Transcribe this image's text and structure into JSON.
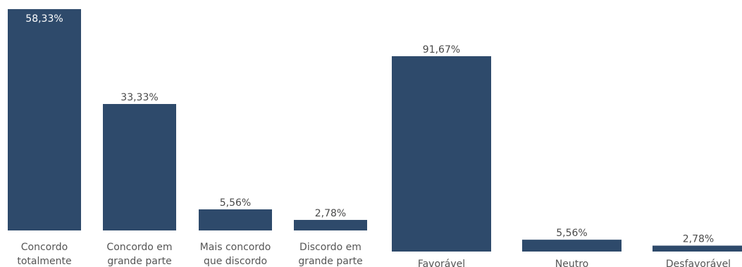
{
  "chart_data": [
    {
      "type": "bar",
      "categories": [
        [
          "Concordo",
          "totalmente"
        ],
        [
          "Concordo em",
          "grande parte"
        ],
        [
          "Mais concordo",
          "que discordo"
        ],
        [
          "Discordo em",
          "grande parte"
        ]
      ],
      "values": [
        58.33,
        33.33,
        5.56,
        2.78
      ],
      "data_labels": [
        "58,33%",
        "33,33%",
        "5,56%",
        "2,78%"
      ],
      "ylim": [
        0,
        58.33
      ],
      "bar_color": "#2e4a6b",
      "grid": false
    },
    {
      "type": "bar",
      "categories": [
        [
          "Favorável"
        ],
        [
          "Neutro"
        ],
        [
          "Desfavorável"
        ]
      ],
      "values": [
        91.67,
        5.56,
        2.78
      ],
      "data_labels": [
        "91,67%",
        "5,56%",
        "2,78%"
      ],
      "ylim": [
        0,
        91.67
      ],
      "bar_color": "#2e4a6b",
      "grid": false
    }
  ]
}
